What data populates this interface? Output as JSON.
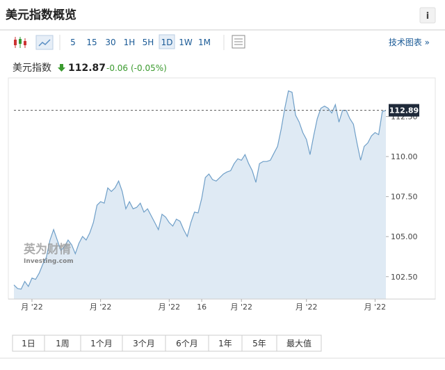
{
  "header": {
    "title": "美元指数概览",
    "info": "i"
  },
  "toolbar": {
    "intervals": [
      "5",
      "15",
      "30",
      "1H",
      "5H",
      "1D",
      "1W",
      "1M"
    ],
    "selected": "1D",
    "link": "技术图表 »"
  },
  "quote": {
    "name": "美元指数",
    "price": "112.87",
    "change": "-0.06",
    "change_pct": "(-0.05%)"
  },
  "watermark": {
    "brand": "英为财情",
    "site": "Investing.com"
  },
  "range_buttons": [
    "1日",
    "1周",
    "1个月",
    "3个月",
    "6个月",
    "1年",
    "5年",
    "最大值"
  ],
  "chart_data": {
    "type": "area",
    "color": "#6f9fc8",
    "fill": "#dfeaf4",
    "values": [
      101.98,
      101.76,
      101.72,
      102.2,
      101.89,
      102.41,
      102.33,
      102.72,
      103.28,
      103.71,
      104.79,
      105.44,
      104.79,
      104.14,
      104.36,
      104.79,
      104.49,
      103.93,
      104.58,
      105.01,
      104.79,
      105.23,
      105.88,
      106.96,
      107.18,
      107.09,
      108.04,
      107.82,
      108.04,
      108.47,
      107.82,
      106.74,
      107.18,
      106.74,
      106.83,
      107.09,
      106.53,
      106.74,
      106.31,
      105.88,
      105.44,
      106.4,
      106.22,
      105.88,
      105.66,
      106.09,
      105.96,
      105.44,
      105.01,
      105.88,
      106.53,
      106.48,
      107.39,
      108.69,
      108.91,
      108.56,
      108.47,
      108.69,
      108.91,
      109.04,
      109.12,
      109.56,
      109.86,
      109.77,
      110.12,
      109.56,
      109.12,
      108.39,
      109.56,
      109.69,
      109.69,
      109.77,
      110.21,
      110.64,
      111.72,
      113.02,
      114.1,
      114.02,
      112.59,
      112.15,
      111.5,
      111.07,
      110.12,
      111.29,
      112.37,
      113.02,
      113.15,
      113.02,
      112.72,
      113.24,
      112.15,
      112.89,
      112.89,
      112.37,
      112.02,
      110.85,
      109.77,
      110.64,
      110.85,
      111.29,
      111.5,
      111.37,
      112.8,
      112.89
    ],
    "xlim": [
      0,
      103
    ],
    "xticks": [
      {
        "value": 5,
        "label": "月 '22"
      },
      {
        "value": 24,
        "label": "月 '22"
      },
      {
        "value": 43,
        "label": "月 '22"
      },
      {
        "value": 52,
        "label": "16"
      },
      {
        "value": 63,
        "label": "月 '22"
      },
      {
        "value": 81,
        "label": "月 '22"
      },
      {
        "value": 100,
        "label": "月 '22"
      }
    ],
    "ylim": [
      101.1,
      115.0
    ],
    "yticks": [
      {
        "value": 102.5,
        "label": "102.50"
      },
      {
        "value": 105,
        "label": "105.00"
      },
      {
        "value": 107.5,
        "label": "107.50"
      },
      {
        "value": 110,
        "label": "110.00"
      },
      {
        "value": 112.5,
        "label": "112.50"
      }
    ]
  }
}
